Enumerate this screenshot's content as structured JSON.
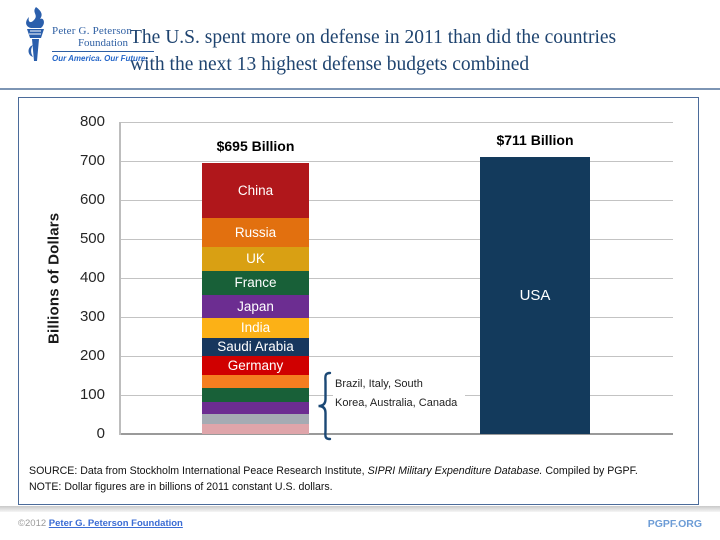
{
  "header": {
    "logo": {
      "line1": "Peter G. Peterson",
      "line2": "Foundation",
      "tagline": "Our America. Our Future."
    },
    "title_line1": "The U.S. spent more on defense in 2011 than did the countries",
    "title_line2": "with the next 13 highest defense budgets combined"
  },
  "chart_data": {
    "type": "bar",
    "subtype": "stacked-vs-single",
    "ylabel": "Billions of Dollars",
    "ylim": [
      0,
      800
    ],
    "yticks": [
      800,
      700,
      600,
      500,
      400,
      300,
      200,
      100,
      0
    ],
    "grid": true,
    "units": "billions of 2011 constant U.S. dollars",
    "bars": [
      {
        "id": "bar-next13",
        "total_label": "$695 Billion",
        "total_value": 695,
        "segments": [
          {
            "name": "china",
            "label": "China",
            "value": 143.0,
            "color": "#b0171b",
            "show_label": true
          },
          {
            "name": "russia",
            "label": "Russia",
            "value": 71.9,
            "color": "#e2700f",
            "show_label": true
          },
          {
            "name": "uk",
            "label": "UK",
            "value": 62.7,
            "color": "#d9a013",
            "show_label": true
          },
          {
            "name": "france",
            "label": "France",
            "value": 62.5,
            "color": "#186038",
            "show_label": true
          },
          {
            "name": "japan",
            "label": "Japan",
            "value": 59.3,
            "color": "#6c2d91",
            "show_label": true
          },
          {
            "name": "india",
            "label": "India",
            "value": 48.9,
            "color": "#fcb116",
            "show_label": true
          },
          {
            "name": "saudi-arabia",
            "label": "Saudi Arabia",
            "value": 48.5,
            "color": "#17375e",
            "show_label": true
          },
          {
            "name": "germany",
            "label": "Germany",
            "value": 46.7,
            "color": "#d00000",
            "show_label": true
          },
          {
            "name": "brazil",
            "label": "Brazil",
            "value": 35.4,
            "color": "#f57e20",
            "show_label": false
          },
          {
            "name": "italy",
            "label": "Italy",
            "value": 34.5,
            "color": "#186038",
            "show_label": false
          },
          {
            "name": "south-korea",
            "label": "South Korea",
            "value": 30.8,
            "color": "#6c2d91",
            "show_label": false
          },
          {
            "name": "australia",
            "label": "Australia",
            "value": 26.7,
            "color": "#a5abb3",
            "show_label": false
          },
          {
            "name": "canada",
            "label": "Canada",
            "value": 24.7,
            "color": "#dfa5aa",
            "show_label": false
          }
        ]
      },
      {
        "id": "bar-usa",
        "total_label": "$711 Billion",
        "total_value": 711,
        "segments": [
          {
            "name": "usa",
            "label": "USA",
            "value": 711,
            "color": "#133a5c",
            "show_label": true
          }
        ]
      }
    ],
    "annotation": {
      "line1": "Brazil, Italy, South",
      "line2": "Korea, Australia, Canada"
    }
  },
  "source": {
    "source_prefix": "SOURCE: Data from Stockholm International Peace Research Institute, ",
    "source_italic": "SIPRI Military Expenditure Database.",
    "source_suffix": " Compiled by PGPF.",
    "note": "NOTE: Dollar figures are in billions of 2011 constant U.S. dollars."
  },
  "footer": {
    "copyright_prefix": "©2012 ",
    "copyright_link": "Peter G. Peterson Foundation",
    "site": "PGPF.ORG"
  },
  "colors": {
    "title_blue": "#1f4470",
    "frame_border": "#4b6b9a",
    "gridline": "#c3c3c3",
    "bracket_navy": "#1b4875",
    "footer_link_blue": "#3b6cd4",
    "site_link_blue": "#6c9cd6"
  }
}
